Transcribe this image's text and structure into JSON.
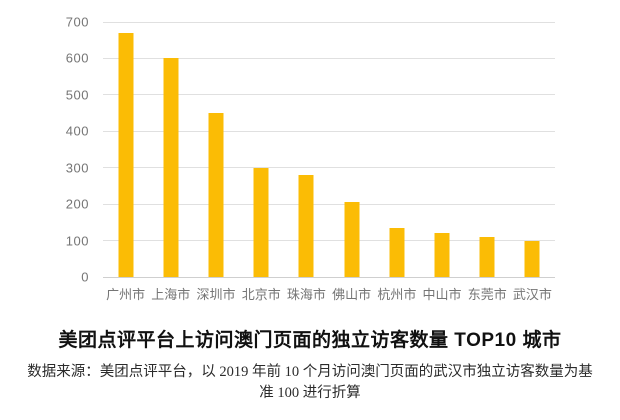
{
  "title": {
    "text": "美团点评平台上访问澳门页面的独立访客数量 TOP10 城市"
  },
  "source_note": {
    "line1": "数据来源：美团点评平台，以 2019 年前 10 个月访问澳门页面的武汉市独立访客数量为基",
    "line2": "准 100 进行折算"
  },
  "chart_data": {
    "type": "bar",
    "categories": [
      "广州市",
      "上海市",
      "深圳市",
      "北京市",
      "珠海市",
      "佛山市",
      "杭州市",
      "中山市",
      "东莞市",
      "武汉市"
    ],
    "values": [
      670,
      600,
      450,
      300,
      280,
      205,
      135,
      120,
      110,
      100
    ],
    "title": "美团点评平台上访问澳门页面的独立访客数量 TOP10 城市",
    "xlabel": "",
    "ylabel": "",
    "ylim": [
      0,
      700
    ],
    "yticks": [
      0,
      100,
      200,
      300,
      400,
      500,
      600,
      700
    ],
    "grid": true,
    "legend": false,
    "colors": {
      "bar": "#FBBC05",
      "gridline": "#E0E0E0",
      "axis_labels": "#757575",
      "title_text": "#111111",
      "source_text": "#2B2B2B",
      "background": "#FFFFFF"
    }
  }
}
